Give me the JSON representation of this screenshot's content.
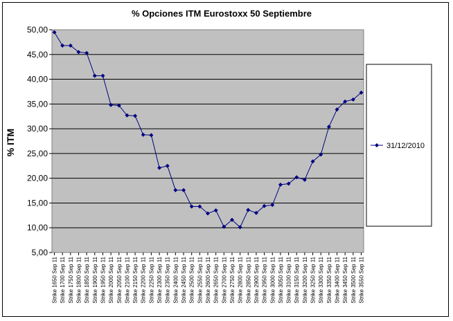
{
  "chart_data": {
    "type": "line",
    "title": "% Opciones ITM Eurostoxx 50 Septiembre",
    "ylabel": "% ITM",
    "xlabel": "",
    "ylim": [
      5,
      50
    ],
    "yticks": [
      "5,00",
      "10,00",
      "15,00",
      "20,00",
      "25,00",
      "30,00",
      "35,00",
      "40,00",
      "45,00",
      "50,00"
    ],
    "grid": "horizontal",
    "legend_position": "right",
    "plot_background": "#c0c0c0",
    "line_color": "#000080",
    "categories": [
      "Strike 1650 Sep 11",
      "Strike 1700 Sep 11",
      "Strike 1750 Sep 11",
      "Strike 1800 Sep 11",
      "Strike 1850 Sep 11",
      "Strike 1900 Sep 11",
      "Strike 1950 Sep 11",
      "Strike 2000 Sep 11",
      "Strike 2050 Sep 11",
      "Strike 2100 Sep 11",
      "Strike 2150 Sep 11",
      "Strike 2200 Sep 11",
      "Strike 2250 Sep 11",
      "Strike 2300 Sep 11",
      "Strike 2350 Sep 11",
      "Strike 2400 Sep 11",
      "Strike 2450 Sep 11",
      "Strike 2500 Sep 11",
      "Strike 2550 Sep 11",
      "Strike 2600 Sep 11",
      "Strike 2650 Sep 11",
      "Strike 2700 Sep 11",
      "Strike 2750 Sep 11",
      "Strike 2800 Sep 11",
      "Strike 2850 Sep 11",
      "Strike 2900 Sep 11",
      "Strike 2950 Sep 11",
      "Strike 3000 Sep 11",
      "Strike 3050 Sep 11",
      "Strike 3100 Sep 11",
      "Strike 3150 Sep 11",
      "Strike 3200 Sep 11",
      "Strike 3250 Sep 11",
      "Strike 3300 Sep 11",
      "Strike 3350 Sep 11",
      "Strike 3400 Sep 11",
      "Strike 3450 Sep 11",
      "Strike 3500 Sep 11",
      "Strike 3550 Sep 11"
    ],
    "series": [
      {
        "name": "31/12/2010",
        "values": [
          49.5,
          46.8,
          46.8,
          45.5,
          45.3,
          40.7,
          40.7,
          34.8,
          34.7,
          32.7,
          32.6,
          28.8,
          28.7,
          22.1,
          22.5,
          17.6,
          17.6,
          14.3,
          14.3,
          12.9,
          13.5,
          10.2,
          11.6,
          10.1,
          13.6,
          13.0,
          14.4,
          14.6,
          18.7,
          18.9,
          20.2,
          19.7,
          23.4,
          24.8,
          30.4,
          33.9,
          35.5,
          35.9,
          37.3
        ]
      }
    ]
  }
}
